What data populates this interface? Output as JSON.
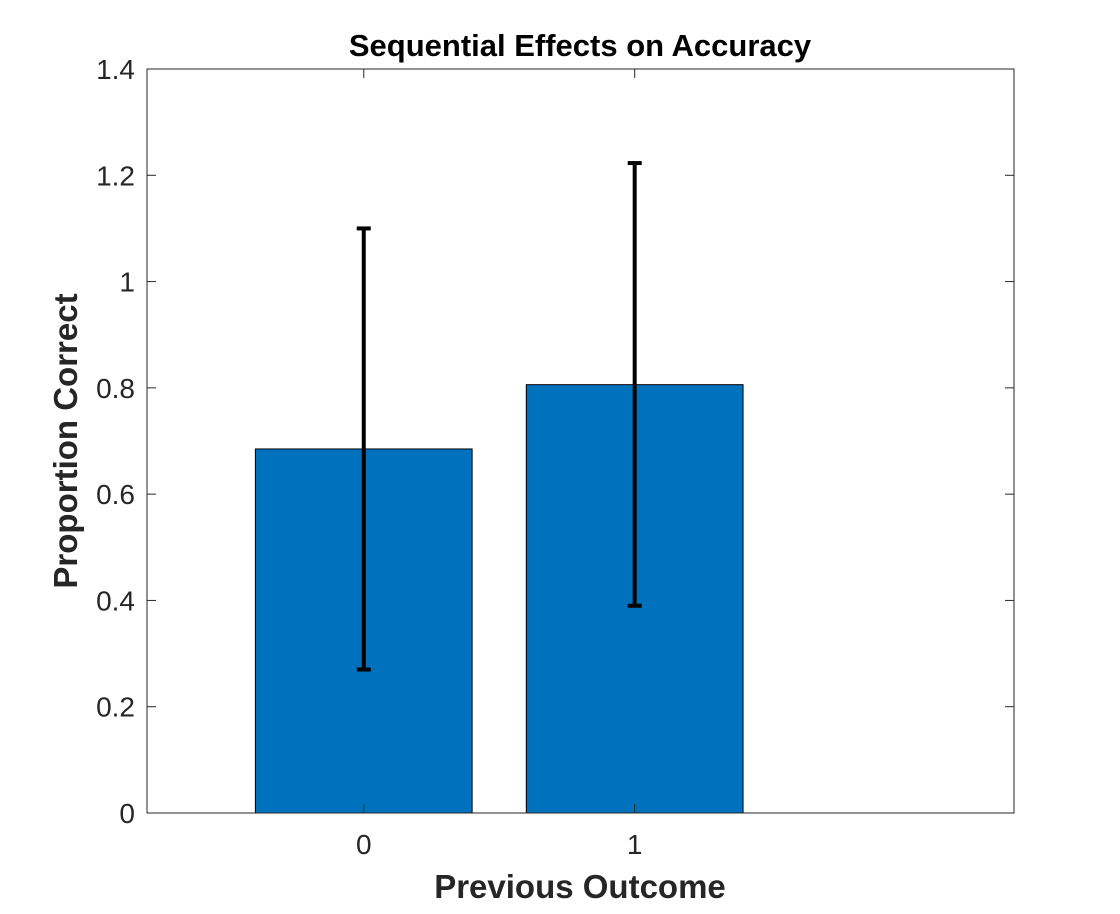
{
  "chart_data": {
    "type": "bar",
    "title": "Sequential Effects on Accuracy",
    "xlabel": "Previous Outcome",
    "ylabel": "Proportion Correct",
    "categories": [
      "0",
      "1"
    ],
    "values": [
      0.685,
      0.806
    ],
    "error_low": [
      0.27,
      0.39
    ],
    "error_high": [
      1.1,
      1.223
    ],
    "ylim": [
      0,
      1.4
    ],
    "xlim": [
      -0.8,
      2.4
    ],
    "yticks": [
      "0",
      "0.2",
      "0.4",
      "0.6",
      "0.8",
      "1",
      "1.2",
      "1.4"
    ],
    "grid": false,
    "bar_color": "#0072BD",
    "error_color": "#000000"
  }
}
